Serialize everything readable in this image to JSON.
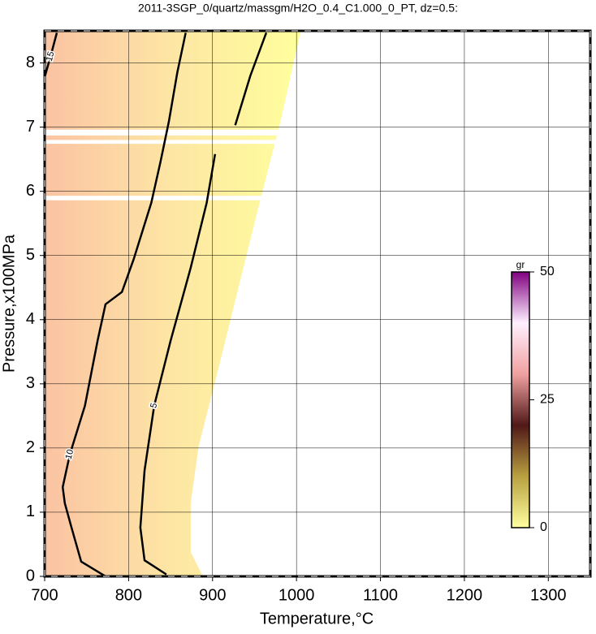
{
  "chart_data": {
    "type": "contour",
    "title": "2011-3SGP_0/quartz/massgm/H2O_0.4_C1.000_0_PT, dz=0.5:",
    "x_label": "Temperature,°C",
    "y_label": "Pressure,x100MPa",
    "xlim": [
      700,
      1350
    ],
    "ylim": [
      0,
      8.5
    ],
    "xticks": [
      700,
      800,
      900,
      1000,
      1100,
      1200,
      1300
    ],
    "yticks": [
      0,
      1,
      2,
      3,
      4,
      5,
      6,
      7,
      8
    ],
    "grid": true,
    "field_colors": [
      "#fbc3a3",
      "#fde6a4",
      "#ffff9c"
    ],
    "field_boundary": {
      "x": [
        700,
        888.5,
        874,
        874,
        883.5,
        908,
        932,
        956,
        981,
        1004.5,
        1004.5,
        700
      ],
      "y": [
        0,
        0,
        0.38,
        1.14,
        2.03,
        3.29,
        4.56,
        5.82,
        7.09,
        8.47,
        8.5,
        8.5
      ]
    },
    "missing_bands": [
      [
        6.87,
        6.96
      ],
      [
        6.74,
        6.8
      ],
      [
        5.86,
        5.93
      ]
    ],
    "contours": [
      {
        "level": 10,
        "x": [
          772.5,
          743.5,
          732,
          724,
          721.5,
          730,
          748,
          763,
          772.5,
          792,
          806,
          827,
          838,
          848,
          858,
          868
        ],
        "y": [
          0,
          0.23,
          0.76,
          1.14,
          1.39,
          1.9,
          2.66,
          3.67,
          4.24,
          4.43,
          4.94,
          5.82,
          6.46,
          7.09,
          7.85,
          8.47
        ]
      },
      {
        "level": 5,
        "x": [
          845,
          819,
          814,
          819,
          830.5,
          850,
          874,
          893,
          903,
          null,
          927,
          945,
          964
        ],
        "y": [
          0.03,
          0.25,
          0.76,
          1.65,
          2.66,
          3.67,
          4.81,
          5.82,
          6.58,
          null,
          7.03,
          7.8,
          8.47
        ]
      },
      {
        "level": 15,
        "x": [
          700,
          707,
          714.5
        ],
        "y": [
          7.78,
          8.1,
          8.47
        ]
      }
    ],
    "colorbar": {
      "label": "gr",
      "lim": [
        0,
        50
      ],
      "ticks": [
        0,
        25,
        50
      ],
      "colors": [
        "#ffffa0",
        "#b8a040",
        "#501818",
        "#f0a0a0",
        "#fff0ff",
        "#800080"
      ]
    }
  }
}
